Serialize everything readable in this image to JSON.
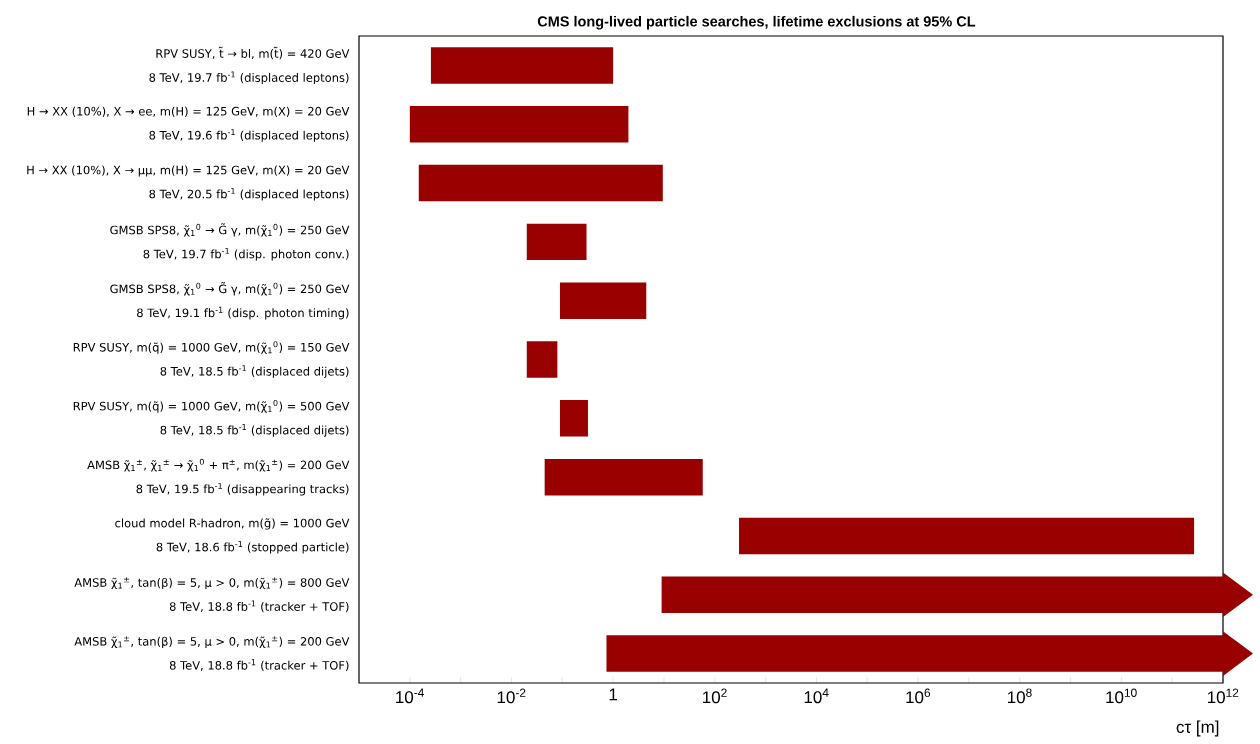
{
  "chart_data": {
    "type": "bar",
    "orientation": "horizontal",
    "title": "CMS long-lived particle searches, lifetime exclusions at 95% CL",
    "xlabel": "cτ [m]",
    "log": "x",
    "color": "#990000",
    "categories": [
      "RPV SUSY, t̃ → bl, m(t̃) = 420 GeV\n8 TeV, 19.7 fb$^{-1}$ (displaced leptons)",
      "H → XX (10%), X → ee, m(H) = 125 GeV, m(X) = 20 GeV\n8 TeV, 19.6 fb$^{-1}$ (displaced leptons)",
      "H → XX (10%), X → μμ, m(H) = 125 GeV, m(X) = 20 GeV\n8 TeV, 20.5 fb$^{-1}$ (displaced leptons)",
      "GMSB SPS8, χ̃$_{1}$$^{0}$ → G̃ γ, m(χ̃$_{1}$$^{0}$) = 250 GeV\n8 TeV, 19.7 fb$^{-1}$ (disp. photon conv.)",
      "GMSB SPS8, χ̃$_{1}$$^{0}$ → G̃ γ, m(χ̃$_{1}$$^{0}$) = 250 GeV\n8 TeV, 19.1 fb$^{-1}$ (disp. photon timing)",
      "RPV SUSY, m(q̃) = 1000 GeV, m(χ̃$_{1}$$^{0}$) = 150 GeV\n8 TeV, 18.5 fb$^{-1}$ (displaced dijets)",
      "RPV SUSY, m(q̃) = 1000 GeV, m(χ̃$_{1}$$^{0}$) = 500 GeV\n8 TeV, 18.5 fb$^{-1}$ (displaced dijets)",
      "AMSB χ̃$_{1}$$^{±}$, χ̃$_{1}$$^{±}$ → χ̃$_{1}$$^{0}$ + π$^{±}$, m(χ̃$_{1}$$^{±}$) = 200 GeV\n8 TeV, 19.5 fb$^{-1}$ (disappearing tracks)",
      "cloud model R-hadron, m(g̃) = 1000 GeV\n8 TeV, 18.6 fb$^{-1}$ (stopped particle)",
      "AMSB χ̃$_{1}$$^{±}$, tan(β) = 5, μ > 0, m(χ̃$_{1}$$^{±}$) = 800 GeV\n8 TeV, 18.8 fb$^{-1}$ (tracker + TOF)",
      "AMSB χ̃$_{1}$$^{±}$, tan(β) = 5, μ > 0, m(χ̃$_{1}$$^{±}$) = 200 GeV\n8 TeV, 18.8 fb$^{-1}$ (tracker + TOF)"
    ],
    "base": [
      0.00026,
      0.0001,
      0.00015,
      0.02,
      0.09,
      0.02,
      0.09,
      0.045,
      300,
      9,
      0.74
    ],
    "values": [
      1,
      2,
      9.5,
      0.28,
      4.4,
      0.06,
      0.23,
      58,
      270000000000.0,
      999999999991,
      999999999999.26
    ],
    "xlim": [
      1e-05,
      1000000000000.0
    ],
    "xticks": [
      {
        "value": 0.0001,
        "label": "10$^{-4}$"
      },
      {
        "value": 0.001,
        "label": null
      },
      {
        "value": 0.01,
        "label": "10$^{-2}$"
      },
      {
        "value": 0.1,
        "label": null
      },
      {
        "value": 1,
        "label": "1"
      },
      {
        "value": 10,
        "label": null
      },
      {
        "value": 100,
        "label": "10$^{2}$"
      },
      {
        "value": 1000.0,
        "label": null
      },
      {
        "value": 10000.0,
        "label": "10$^{4}$"
      },
      {
        "value": 100000.0,
        "label": null
      },
      {
        "value": 1000000.0,
        "label": "10$^{6}$"
      },
      {
        "value": 10000000.0,
        "label": null
      },
      {
        "value": 100000000.0,
        "label": "10$^{8}$"
      },
      {
        "value": 1000000000.0,
        "label": null
      },
      {
        "value": 10000000000.0,
        "label": "10$^{10}$"
      },
      {
        "value": 100000000000.0,
        "label": null
      },
      {
        "value": 1000000000000.0,
        "label": "10$^{12}$"
      }
    ]
  }
}
